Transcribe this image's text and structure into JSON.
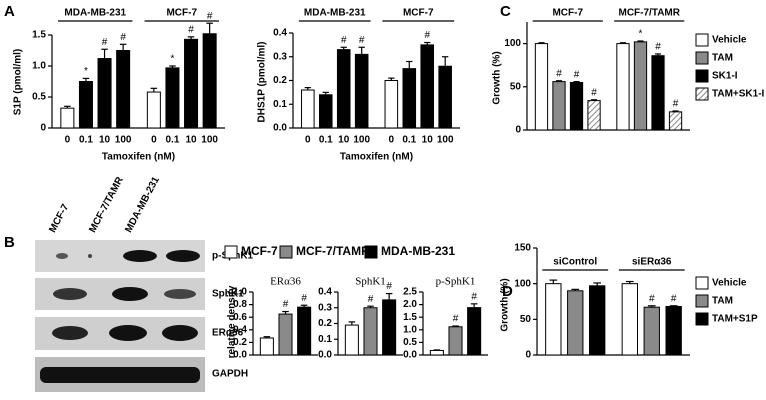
{
  "chart_data": [
    {
      "type": "bar",
      "panel": "A",
      "ylabel": "S1P (pmol/ml)",
      "xlabel": "Tamoxifen (nM)",
      "ylim": [
        0,
        1.5
      ],
      "yticks": [
        0,
        0.5,
        {
          "value": 1,
          "label": "1.0"
        },
        1.5
      ],
      "colors": [
        "#ffffff",
        "#000000",
        "#000000",
        "#000000"
      ],
      "groups": [
        {
          "name": "MDA-MB-231",
          "categories": [
            "0",
            "0.1",
            "10",
            "100"
          ],
          "values": [
            0.32,
            0.75,
            1.12,
            1.25
          ],
          "errors": [
            0.03,
            0.05,
            0.15,
            0.1
          ],
          "markers": [
            null,
            "*",
            "#",
            "#"
          ]
        },
        {
          "name": "MCF-7",
          "categories": [
            "0",
            "0.1",
            "10",
            "100"
          ],
          "values": [
            0.58,
            0.97,
            1.43,
            1.52
          ],
          "errors": [
            0.06,
            0.03,
            0.04,
            0.17
          ],
          "markers": [
            null,
            "*",
            "#",
            "#"
          ]
        }
      ]
    },
    {
      "type": "bar",
      "ylabel": "DHS1P (pmol/ml)",
      "xlabel": "Tamoxifen (nM)",
      "ylim": [
        0,
        0.4
      ],
      "yticks": [
        {
          "value": 0,
          "label": "0.0"
        },
        0.1,
        0.2,
        0.3,
        0.4
      ],
      "colors": [
        "#ffffff",
        "#000000",
        "#000000",
        "#000000"
      ],
      "groups": [
        {
          "name": "MDA-MB-231",
          "categories": [
            "0",
            "0.1",
            "10",
            "100"
          ],
          "values": [
            0.16,
            0.14,
            0.33,
            0.31
          ],
          "errors": [
            0.01,
            0.01,
            0.01,
            0.03
          ],
          "markers": [
            null,
            null,
            "#",
            "#"
          ]
        },
        {
          "name": "MCF-7",
          "categories": [
            "0",
            "0.1",
            "10",
            "100"
          ],
          "values": [
            0.2,
            0.25,
            0.35,
            0.26
          ],
          "errors": [
            0.01,
            0.03,
            0.01,
            0.04
          ],
          "markers": [
            null,
            null,
            "#",
            null
          ]
        }
      ]
    },
    {
      "type": "bar",
      "panel": "C",
      "ylabel": "Growth (%)",
      "ylim": [
        0,
        125
      ],
      "yticks": [
        0,
        50,
        100
      ],
      "series": [
        {
          "name": "Vehicle",
          "color": "#ffffff"
        },
        {
          "name": "TAM",
          "color": "#8a8a8a"
        },
        {
          "name": "SK1-I",
          "color": "#000000"
        },
        {
          "name": "TAM+SK1-I",
          "hatch": true
        }
      ],
      "groups": [
        {
          "name": "MCF-7",
          "values": [
            100,
            56,
            55,
            34
          ],
          "errors": [
            1,
            1,
            1,
            1
          ],
          "markers": [
            null,
            "#",
            "#",
            "#"
          ]
        },
        {
          "name": "MCF-7/TAMR",
          "values": [
            100,
            102,
            86,
            21
          ],
          "errors": [
            1,
            1,
            2,
            1
          ],
          "markers": [
            null,
            "*",
            "#",
            "#"
          ]
        }
      ]
    },
    {
      "type": "bar",
      "ylabel": "relative density",
      "series": [
        {
          "name": "MCF-7",
          "color": "#ffffff"
        },
        {
          "name": "MCF-7/TAMR",
          "color": "#8a8a8a"
        },
        {
          "name": "MDA-MB-231",
          "color": "#000000"
        }
      ],
      "subplots": [
        {
          "title": "ERα36",
          "ylim": [
            0,
            1
          ],
          "yticks": [
            {
              "value": 0,
              "label": "0.0"
            },
            0.2,
            0.4,
            0.6,
            0.8,
            {
              "value": 1,
              "label": "1.0"
            }
          ],
          "values": [
            0.27,
            0.65,
            0.76
          ],
          "errors": [
            0.02,
            0.04,
            0.03
          ],
          "markers": [
            null,
            "#",
            "#"
          ]
        },
        {
          "title": "SphK1",
          "ylim": [
            0,
            0.4
          ],
          "yticks": [
            {
              "value": 0,
              "label": "0.0"
            },
            0.1,
            0.2,
            0.3,
            0.4
          ],
          "values": [
            0.19,
            0.3,
            0.35
          ],
          "errors": [
            0.02,
            0.01,
            0.04
          ],
          "markers": [
            null,
            "#",
            "#"
          ]
        },
        {
          "title": "p-SphK1",
          "ylim": [
            0,
            2.5
          ],
          "yticks": [
            {
              "value": 0,
              "label": "0.0"
            },
            0.5,
            {
              "value": 1,
              "label": "1.0"
            },
            1.5,
            {
              "value": 2,
              "label": "2.0"
            },
            2.5
          ],
          "values": [
            0.18,
            1.12,
            1.88
          ],
          "errors": [
            0.02,
            0.03,
            0.15
          ],
          "markers": [
            null,
            "#",
            "#"
          ]
        }
      ]
    },
    {
      "type": "bar",
      "panel": "D",
      "ylabel": "Growth (%)",
      "ylim": [
        0,
        150
      ],
      "yticks": [
        0,
        50,
        100,
        150
      ],
      "series": [
        {
          "name": "Vehicle",
          "color": "#ffffff"
        },
        {
          "name": "TAM",
          "color": "#8a8a8a"
        },
        {
          "name": "TAM+S1P",
          "color": "#000000"
        }
      ],
      "groups": [
        {
          "name": "siControl",
          "values": [
            100,
            90,
            97
          ],
          "errors": [
            5,
            2,
            4
          ],
          "markers": [
            null,
            null,
            null
          ]
        },
        {
          "name": "siERα36",
          "values": [
            100,
            67,
            68
          ],
          "errors": [
            3,
            2,
            1
          ],
          "markers": [
            null,
            "#",
            "#"
          ]
        }
      ]
    }
  ],
  "blot": {
    "panel": "B",
    "lanes": [
      "MCF-7",
      "MCF-7/TAMR",
      "MDA-MB-231"
    ],
    "proteins": [
      "p-SphK1",
      "SphK1",
      "ERα36",
      "GAPDH"
    ]
  }
}
